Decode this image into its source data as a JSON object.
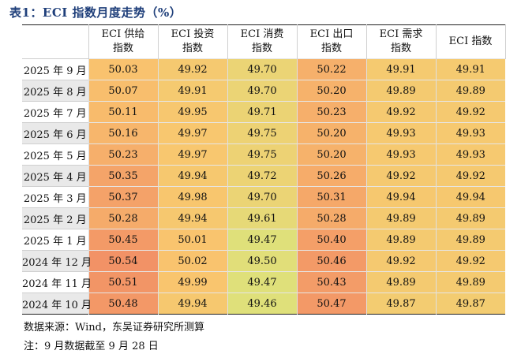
{
  "title": "表1：ECI 指数月度走势（%）",
  "headers": [
    "",
    "ECI 供给\n指数",
    "ECI 投资\n指数",
    "ECI 消费\n指数",
    "ECI 出口\n指数",
    "ECI 需求\n指数",
    "ECI 指数"
  ],
  "rows": [
    {
      "label": "2025 年 9 月",
      "values": [
        "50.03",
        "49.92",
        "49.70",
        "50.22",
        "49.91",
        "49.91"
      ]
    },
    {
      "label": "2025 年 8 月",
      "values": [
        "50.07",
        "49.91",
        "49.70",
        "50.20",
        "49.89",
        "49.89"
      ]
    },
    {
      "label": "2025 年 7 月",
      "values": [
        "50.11",
        "49.95",
        "49.71",
        "50.23",
        "49.92",
        "49.92"
      ]
    },
    {
      "label": "2025 年 6 月",
      "values": [
        "50.16",
        "49.97",
        "49.75",
        "50.20",
        "49.93",
        "49.93"
      ]
    },
    {
      "label": "2025 年 5 月",
      "values": [
        "50.23",
        "49.97",
        "49.75",
        "50.20",
        "49.93",
        "49.93"
      ]
    },
    {
      "label": "2025 年 4 月",
      "values": [
        "50.35",
        "49.94",
        "49.72",
        "50.26",
        "49.92",
        "49.92"
      ]
    },
    {
      "label": "2025 年 3 月",
      "values": [
        "50.37",
        "49.98",
        "49.70",
        "50.31",
        "49.94",
        "49.94"
      ]
    },
    {
      "label": "2025 年 2 月",
      "values": [
        "50.28",
        "49.94",
        "49.61",
        "50.28",
        "49.89",
        "49.89"
      ]
    },
    {
      "label": "2025 年 1 月",
      "values": [
        "50.45",
        "50.01",
        "49.47",
        "50.40",
        "49.89",
        "49.89"
      ]
    },
    {
      "label": "2024 年 12 月",
      "values": [
        "50.54",
        "50.02",
        "49.50",
        "50.46",
        "49.92",
        "49.92"
      ]
    },
    {
      "label": "2024 年 11 月",
      "values": [
        "50.51",
        "49.99",
        "49.47",
        "50.43",
        "49.89",
        "49.89"
      ]
    },
    {
      "label": "2024 年 10 月",
      "values": [
        "50.48",
        "49.94",
        "49.46",
        "50.47",
        "49.87",
        "49.87"
      ]
    }
  ],
  "row_label_colors": [
    "#ffffff",
    "#e9e9e9"
  ],
  "heat_colors": {
    "low": "#dfe07a",
    "mid": "#f9c56e",
    "high": "#f29266"
  },
  "source": "数据来源：Wind，东吴证券研究所测算",
  "footnote": "注：9 月数据截至 9 月 28 日"
}
